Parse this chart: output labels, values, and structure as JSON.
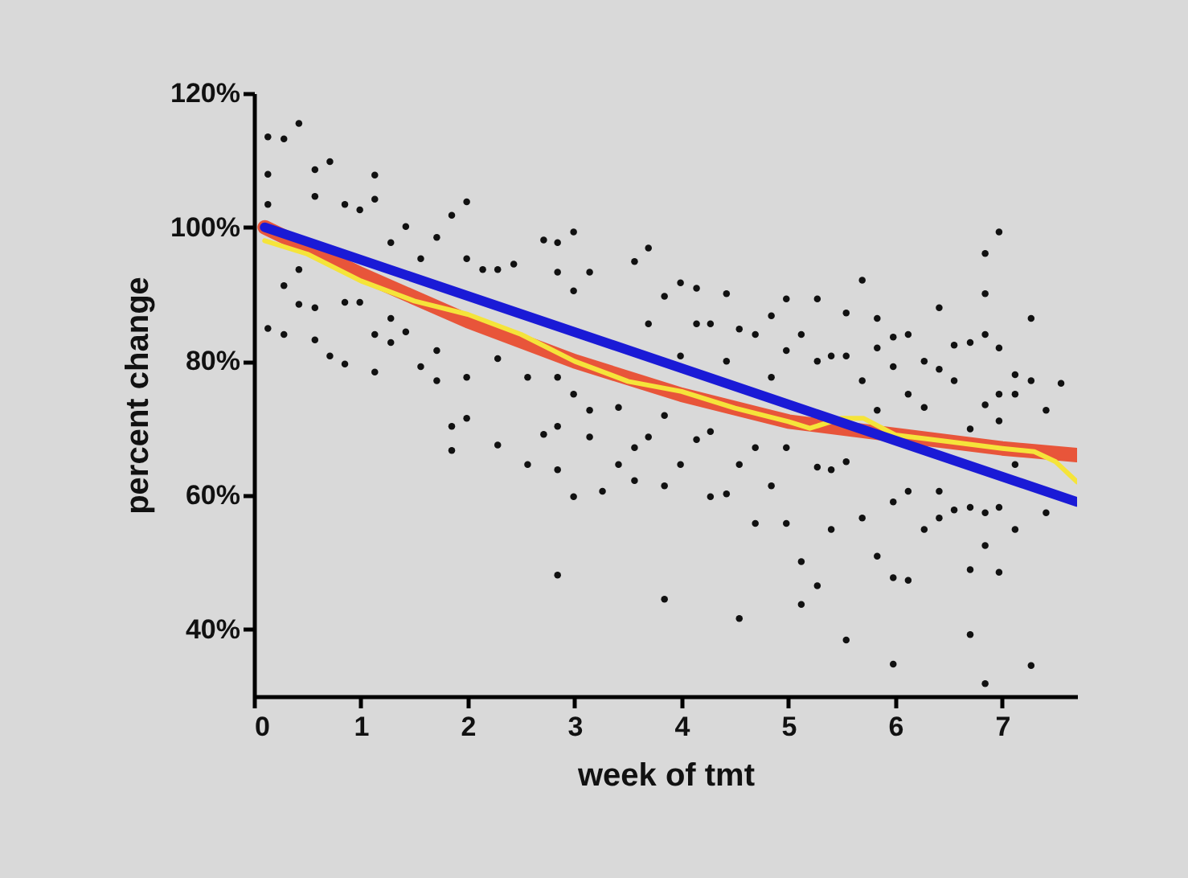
{
  "chart_data": {
    "type": "scatter",
    "xlabel": "week of tmt",
    "ylabel": "percent change",
    "xlim": [
      0,
      7.7
    ],
    "ylim": [
      30,
      120
    ],
    "xticks": [
      0,
      1,
      2,
      3,
      4,
      5,
      6,
      7
    ],
    "yticks": [
      {
        "value": 40,
        "label": "40%"
      },
      {
        "value": 60,
        "label": "60%"
      },
      {
        "value": 80,
        "label": "80%"
      },
      {
        "value": 100,
        "label": "100%"
      },
      {
        "value": 120,
        "label": "120%"
      }
    ],
    "series": [
      {
        "color": "#111111",
        "marker": "circle",
        "x": [
          0.13,
          0.28,
          0.42,
          0.13,
          0.13,
          0.13,
          0.28,
          0.28,
          0.42,
          0.42,
          0.57,
          0.57,
          0.57,
          0.57,
          0.71,
          0.71,
          0.85,
          0.85,
          0.85,
          0.99,
          0.99,
          1.13,
          1.13,
          1.13,
          1.13,
          1.28,
          1.28,
          1.28,
          1.42,
          1.42,
          1.56,
          1.56,
          1.71,
          1.71,
          1.71,
          1.85,
          1.85,
          1.85,
          1.99,
          1.99,
          1.99,
          1.99,
          2.14,
          2.28,
          2.28,
          2.28,
          2.43,
          2.56,
          2.56,
          2.71,
          2.84,
          2.84,
          2.84,
          2.84,
          2.84,
          2.84,
          2.71,
          2.99,
          2.99,
          2.99,
          2.99,
          3.14,
          3.14,
          3.14,
          3.26,
          3.41,
          3.41,
          3.56,
          3.56,
          3.56,
          3.69,
          3.69,
          3.69,
          3.84,
          3.84,
          3.84,
          3.84,
          3.99,
          3.99,
          3.99,
          4.14,
          4.14,
          4.14,
          4.27,
          4.27,
          4.27,
          4.42,
          4.42,
          4.42,
          4.54,
          4.54,
          4.54,
          4.69,
          4.69,
          4.69,
          4.84,
          4.84,
          4.84,
          4.98,
          4.98,
          4.98,
          4.98,
          5.12,
          5.12,
          5.12,
          5.27,
          5.27,
          5.27,
          5.27,
          5.4,
          5.4,
          5.4,
          5.54,
          5.54,
          5.54,
          5.54,
          5.69,
          5.69,
          5.69,
          5.83,
          5.83,
          5.83,
          5.83,
          5.98,
          5.98,
          5.98,
          5.98,
          5.98,
          6.12,
          6.12,
          6.12,
          6.12,
          6.27,
          6.27,
          6.27,
          6.41,
          6.41,
          6.41,
          6.41,
          6.55,
          6.55,
          6.55,
          6.7,
          6.7,
          6.7,
          6.7,
          6.7,
          6.84,
          6.84,
          6.84,
          6.84,
          6.84,
          6.84,
          6.84,
          6.97,
          6.97,
          6.97,
          6.97,
          6.97,
          6.97,
          7.12,
          7.12,
          7.12,
          7.12,
          7.27,
          7.27,
          7.27,
          7.41,
          7.41,
          7.55
        ],
        "values": [
          113.5,
          113.2,
          115.5,
          107.9,
          103.4,
          84.9,
          84,
          91.3,
          93.7,
          88.5,
          108.6,
          104.6,
          83.2,
          88,
          109.8,
          80.8,
          103.4,
          79.6,
          88.8,
          102.6,
          88.8,
          107.8,
          104.2,
          84,
          78.4,
          97.7,
          86.4,
          82.8,
          100.1,
          84.4,
          95.3,
          79.2,
          98.5,
          81.6,
          77.1,
          101.8,
          70.3,
          66.7,
          103.8,
          95.3,
          77.6,
          71.5,
          93.7,
          93.7,
          80.4,
          67.5,
          94.5,
          77.6,
          64.6,
          98.1,
          97.7,
          93.3,
          77.6,
          70.3,
          63.8,
          48.1,
          69.1,
          99.3,
          90.5,
          75.1,
          59.8,
          93.3,
          72.7,
          68.7,
          60.6,
          73.1,
          64.6,
          94.9,
          67.1,
          62.2,
          96.9,
          85.6,
          68.7,
          89.7,
          71.9,
          61.4,
          44.5,
          91.7,
          80.8,
          64.6,
          90.9,
          85.6,
          68.3,
          85.6,
          69.5,
          59.8,
          90.1,
          80,
          60.2,
          84.8,
          64.6,
          41.6,
          84,
          67.1,
          55.8,
          86.8,
          77.6,
          61.4,
          89.3,
          81.6,
          67.1,
          55.8,
          84,
          50.1,
          43.7,
          89.3,
          80,
          64.2,
          46.5,
          80.8,
          63.8,
          54.9,
          87.2,
          80.8,
          65,
          38.4,
          92.1,
          77.1,
          56.6,
          86.4,
          82,
          72.7,
          50.9,
          83.6,
          79.2,
          59,
          47.7,
          34.8,
          84,
          75.1,
          60.6,
          47.3,
          80,
          73.1,
          54.9,
          88,
          78.8,
          60.6,
          56.6,
          82.4,
          77.1,
          57.8,
          82.8,
          69.9,
          58.2,
          48.9,
          39.2,
          96.1,
          90.1,
          84,
          73.5,
          57.4,
          52.5,
          31.9,
          99.3,
          82,
          75.1,
          71.1,
          58.2,
          48.5,
          78,
          75.1,
          64.6,
          54.9,
          86.4,
          77.1,
          34.6,
          72.7,
          57.4,
          76.7
        ]
      },
      {
        "type": "line",
        "color": "#e8553a",
        "x": [
          0.1,
          1,
          2,
          3,
          4,
          5,
          6,
          7,
          7.7
        ],
        "values": [
          100,
          93,
          86,
          80,
          75,
          71,
          69,
          67,
          66
        ]
      },
      {
        "type": "line",
        "color": "#f5e43a",
        "x": [
          0.1,
          0.5,
          1,
          1.5,
          2,
          2.5,
          3,
          3.5,
          4,
          4.5,
          5,
          5.2,
          5.5,
          5.7,
          6,
          6.5,
          7,
          7.3,
          7.5,
          7.7
        ],
        "values": [
          98,
          96,
          92,
          89,
          87,
          84,
          80,
          77,
          75.5,
          73,
          71,
          70,
          71.5,
          71.5,
          69,
          68,
          67,
          66.5,
          65,
          62
        ]
      },
      {
        "type": "line",
        "color": "#1a1ad6",
        "x": [
          0.1,
          7.7
        ],
        "values": [
          100,
          59
        ]
      }
    ]
  }
}
